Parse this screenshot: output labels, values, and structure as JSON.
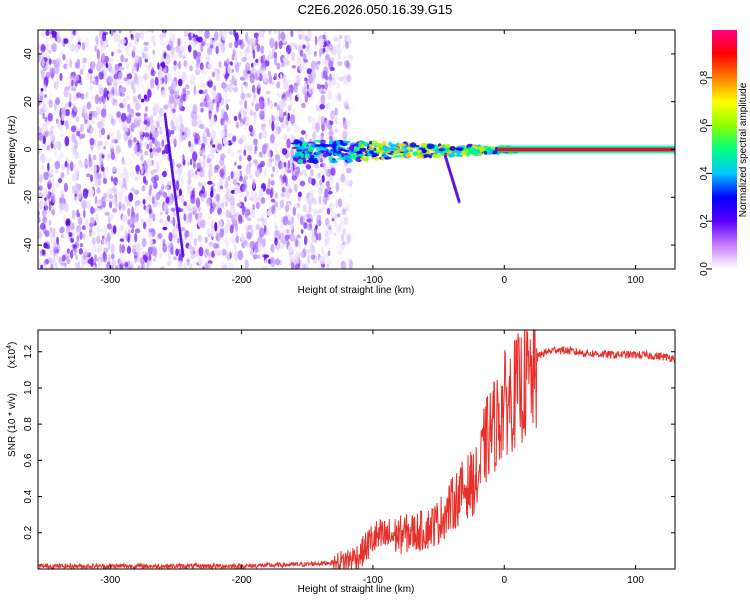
{
  "chart_data": [
    {
      "type": "heatmap",
      "title": "C2E6.2026.050.16.39.G15",
      "xlabel": "Height of straight line (km)",
      "ylabel": "Frequency (Hz)",
      "xlim": [
        -355,
        130
      ],
      "ylim": [
        -50,
        50
      ],
      "xticks": [
        -300,
        -200,
        -100,
        0,
        100
      ],
      "xtick_labels": [
        "-300",
        "-200",
        "-100",
        "0",
        "100"
      ],
      "yticks": [
        -40,
        -20,
        0,
        20,
        40
      ],
      "ytick_labels": [
        "-40",
        "-20",
        "0",
        "20",
        "40"
      ],
      "colorbar": {
        "label": "Normalized spectral amplitude",
        "range": [
          0.0,
          1.0
        ],
        "ticks": [
          0.0,
          0.2,
          0.4,
          0.6,
          0.8
        ],
        "tick_labels": [
          "0.0",
          "0.2",
          "0.4",
          "0.6",
          "0.8"
        ],
        "colors": [
          "#ffffff",
          "#c77dff",
          "#5a00ff",
          "#0000ff",
          "#00c8ff",
          "#00ff80",
          "#8cff00",
          "#ffff00",
          "#ff8000",
          "#ff0000",
          "#ff0080"
        ]
      },
      "features": {
        "noise_region_x": [
          -355,
          -130
        ],
        "carrier_frequency_hz": 0,
        "carrier_start_x": -160,
        "carrier_strong_from_x": 10
      }
    },
    {
      "type": "line",
      "xlabel": "Height of straight line (km)",
      "ylabel": "SNR (10 * v/v)",
      "scale_label": "(x10",
      "scale_exponent": "4",
      "scale_close": ")",
      "xlim": [
        -355,
        130
      ],
      "ylim": [
        0,
        1.32
      ],
      "xticks": [
        -300,
        -200,
        -100,
        0,
        100
      ],
      "xtick_labels": [
        "-300",
        "-200",
        "-100",
        "0",
        "100"
      ],
      "yticks": [
        0.2,
        0.4,
        0.6,
        0.8,
        1.0,
        1.2
      ],
      "ytick_labels": [
        "0.2",
        "0.4",
        "0.6",
        "0.8",
        "1.0",
        "1.2"
      ],
      "series": [
        {
          "name": "SNR",
          "color": "#e8302a",
          "x": [
            -355,
            -300,
            -200,
            -150,
            -130,
            -110,
            -100,
            -80,
            -60,
            -50,
            -40,
            -30,
            -20,
            -15,
            -10,
            -5,
            0,
            10,
            20,
            30,
            40,
            50,
            60,
            80,
            100,
            120,
            130
          ],
          "y": [
            0.02,
            0.02,
            0.02,
            0.03,
            0.04,
            0.1,
            0.2,
            0.22,
            0.25,
            0.3,
            0.4,
            0.5,
            0.55,
            0.75,
            0.85,
            0.9,
            1.0,
            1.08,
            1.15,
            1.2,
            1.22,
            1.21,
            1.2,
            1.19,
            1.19,
            1.18,
            1.17
          ]
        }
      ]
    }
  ]
}
